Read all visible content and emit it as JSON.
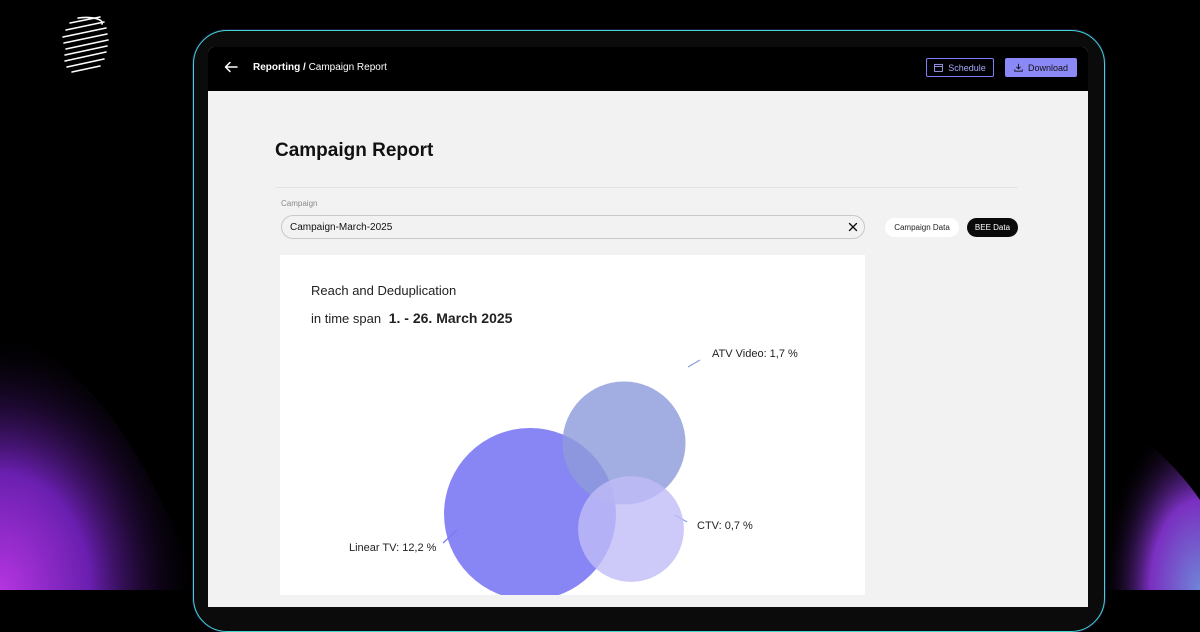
{
  "header": {
    "breadcrumb_root": "Reporting /",
    "breadcrumb_current": "Campaign Report",
    "schedule_label": "Schedule",
    "download_label": "Download"
  },
  "page": {
    "title": "Campaign Report",
    "campaign_label": "Campaign",
    "campaign_value": "Campaign-March-2025",
    "toggle_campaign_data": "Campaign Data",
    "toggle_bee_data": "BEE Data",
    "active_toggle": "BEE Data"
  },
  "colors": {
    "accent": "#8b88f8",
    "linear_tv": "#7b78f4",
    "atv_video": "#8d9bdb",
    "ctv": "#c0bcf8"
  },
  "chart_data": {
    "type": "venn",
    "title": "Reach and Deduplication",
    "subtitle_prefix": "in time span",
    "subtitle_range": "1. - 26. March 2025",
    "series": [
      {
        "name": "Linear TV",
        "value": 12.2,
        "label": "Linear TV: 12,2 %"
      },
      {
        "name": "ATV Video",
        "value": 1.7,
        "label": "ATV Video: 1,7 %"
      },
      {
        "name": "CTV",
        "value": 0.7,
        "label": "CTV: 0,7 %"
      }
    ]
  }
}
